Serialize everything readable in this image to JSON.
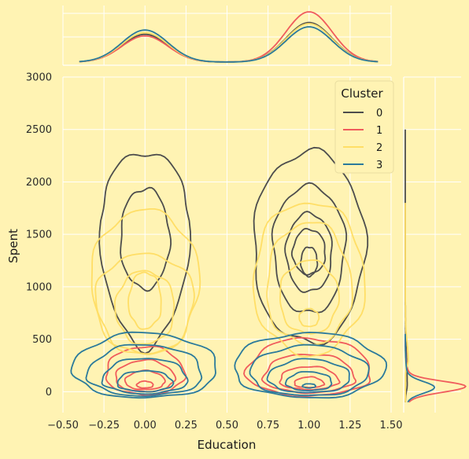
{
  "chart_data": {
    "type": "kde-jointplot",
    "xlabel": "Education",
    "ylabel": "Spent",
    "xlim": [
      -0.5,
      1.5
    ],
    "ylim": [
      -200,
      3000
    ],
    "xticks": [
      -0.5,
      -0.25,
      0.0,
      0.25,
      0.5,
      0.75,
      1.0,
      1.25,
      1.5
    ],
    "xtick_labels": [
      "−0.50",
      "−0.25",
      "0.00",
      "0.25",
      "0.50",
      "0.75",
      "1.00",
      "1.25",
      "1.50"
    ],
    "yticks": [
      0,
      500,
      1000,
      1500,
      2000,
      2500,
      3000
    ],
    "ytick_labels": [
      "0",
      "500",
      "1000",
      "1500",
      "2000",
      "2500",
      "3000"
    ],
    "grid": true,
    "legend": {
      "title": "Cluster",
      "position": "top-right"
    },
    "series": [
      {
        "name": "0",
        "color": "#4d4d4d",
        "x_marginal": {
          "means": [
            0,
            1
          ],
          "sd": 0.14,
          "peaks": [
            0.52,
            0.74
          ]
        },
        "y_marginal": {
          "peak_at": 60,
          "peak": 0.02,
          "tail_to": 2500
        },
        "contours": [
          {
            "center": [
              0,
              1630
            ],
            "x_halfwidths": [
              0.27,
              0.28
            ],
            "y_range": [
              430,
              2280
            ]
          },
          {
            "center": [
              0,
              1450
            ],
            "x_halfwidths": [
              0.15,
              0.15
            ],
            "y_range": [
              980,
              1940
            ]
          },
          {
            "center": [
              1,
              1390
            ],
            "x_halfwidths": [
              0.34,
              0.34
            ],
            "y_range": [
              460,
              2290
            ]
          },
          {
            "center": [
              1,
              1400
            ],
            "x_halfwidths": [
              0.22,
              0.22
            ],
            "y_range": [
              740,
              1960
            ]
          },
          {
            "center": [
              1,
              1330
            ],
            "x_halfwidths": [
              0.14,
              0.14
            ],
            "y_range": [
              950,
              1700
            ]
          },
          {
            "center": [
              1,
              1320
            ],
            "x_halfwidths": [
              0.1,
              0.1
            ],
            "y_range": [
              1120,
              1550
            ]
          },
          {
            "center": [
              1,
              1240
            ],
            "x_halfwidths": [
              0.05,
              0.05
            ],
            "y_range": [
              1100,
              1380
            ]
          }
        ]
      },
      {
        "name": "1",
        "color": "#F05C5C",
        "x_marginal": {
          "means": [
            0,
            1
          ],
          "sd": 0.14,
          "peaks": [
            0.49,
            0.94
          ]
        },
        "y_marginal": {
          "peak_at": 50,
          "peak": 0.62,
          "tail_to": 500
        },
        "contours": [
          {
            "center": [
              0,
              160
            ],
            "x_halfwidths": [
              0.24,
              0.24
            ],
            "y_range": [
              -30,
              430
            ]
          },
          {
            "center": [
              0,
              120
            ],
            "x_halfwidths": [
              0.18,
              0.18
            ],
            "y_range": [
              0,
              300
            ]
          },
          {
            "center": [
              0,
              90
            ],
            "x_halfwidths": [
              0.12,
              0.12
            ],
            "y_range": [
              20,
              200
            ]
          },
          {
            "center": [
              0,
              60
            ],
            "x_halfwidths": [
              0.05,
              0.05
            ],
            "y_range": [
              35,
              100
            ]
          },
          {
            "center": [
              1,
              170
            ],
            "x_halfwidths": [
              0.38,
              0.38
            ],
            "y_range": [
              -40,
              510
            ]
          },
          {
            "center": [
              1,
              130
            ],
            "x_halfwidths": [
              0.28,
              0.28
            ],
            "y_range": [
              -10,
              360
            ]
          },
          {
            "center": [
              1,
              100
            ],
            "x_halfwidths": [
              0.18,
              0.18
            ],
            "y_range": [
              20,
              240
            ]
          },
          {
            "center": [
              1,
              70
            ],
            "x_halfwidths": [
              0.09,
              0.09
            ],
            "y_range": [
              40,
              140
            ]
          }
        ]
      },
      {
        "name": "2",
        "color": "#FFDE66",
        "x_marginal": {
          "means": [
            0,
            1
          ],
          "sd": 0.14,
          "peaks": [
            0.55,
            0.72
          ]
        },
        "y_marginal": {
          "peak_at": 300,
          "peak": 0.03,
          "tail_to": 1800
        },
        "contours": [
          {
            "center": [
              0,
              1050
            ],
            "x_halfwidths": [
              0.33,
              0.33
            ],
            "y_range": [
              350,
              1730
            ]
          },
          {
            "center": [
              0,
              900
            ],
            "x_halfwidths": [
              0.3,
              0.3
            ],
            "y_range": [
              350,
              1310
            ]
          },
          {
            "center": [
              0,
              800
            ],
            "x_halfwidths": [
              0.18,
              0.18
            ],
            "y_range": [
              450,
              1150
            ]
          },
          {
            "center": [
              0,
              850
            ],
            "x_halfwidths": [
              0.1,
              0.1
            ],
            "y_range": [
              600,
              1140
            ]
          },
          {
            "center": [
              1,
              1050
            ],
            "x_halfwidths": [
              0.34,
              0.34
            ],
            "y_range": [
              350,
              1810
            ]
          },
          {
            "center": [
              1,
              950
            ],
            "x_halfwidths": [
              0.26,
              0.26
            ],
            "y_range": [
              450,
              1620
            ]
          },
          {
            "center": [
              1,
              900
            ],
            "x_halfwidths": [
              0.18,
              0.18
            ],
            "y_range": [
              550,
              1250
            ]
          },
          {
            "center": [
              1,
              700
            ],
            "x_halfwidths": [
              0.06,
              0.06
            ],
            "y_range": [
              620,
              790
            ]
          }
        ]
      },
      {
        "name": "3",
        "color": "#2B7A9B",
        "x_marginal": {
          "means": [
            0,
            1
          ],
          "sd": 0.14,
          "peaks": [
            0.6,
            0.66
          ]
        },
        "y_marginal": {
          "peak_at": 40,
          "peak": 0.3,
          "tail_to": 550
        },
        "contours": [
          {
            "center": [
              0,
              200
            ],
            "x_halfwidths": [
              0.44,
              0.44
            ],
            "y_range": [
              -60,
              560
            ]
          },
          {
            "center": [
              0,
              150
            ],
            "x_halfwidths": [
              0.35,
              0.35
            ],
            "y_range": [
              -40,
              450
            ]
          },
          {
            "center": [
              0,
              110
            ],
            "x_halfwidths": [
              0.26,
              0.26
            ],
            "y_range": [
              -20,
              320
            ]
          },
          {
            "center": [
              0,
              80
            ],
            "x_halfwidths": [
              0.17,
              0.17
            ],
            "y_range": [
              0,
              200
            ]
          },
          {
            "center": [
              1,
              220
            ],
            "x_halfwidths": [
              0.46,
              0.46
            ],
            "y_range": [
              -60,
              560
            ]
          },
          {
            "center": [
              1,
              170
            ],
            "x_halfwidths": [
              0.36,
              0.36
            ],
            "y_range": [
              -40,
              440
            ]
          },
          {
            "center": [
              1,
              120
            ],
            "x_halfwidths": [
              0.25,
              0.25
            ],
            "y_range": [
              -10,
              310
            ]
          },
          {
            "center": [
              1,
              80
            ],
            "x_halfwidths": [
              0.14,
              0.14
            ],
            "y_range": [
              10,
              190
            ]
          },
          {
            "center": [
              1,
              55
            ],
            "x_halfwidths": [
              0.04,
              0.04
            ],
            "y_range": [
              35,
              75
            ]
          }
        ]
      }
    ]
  }
}
